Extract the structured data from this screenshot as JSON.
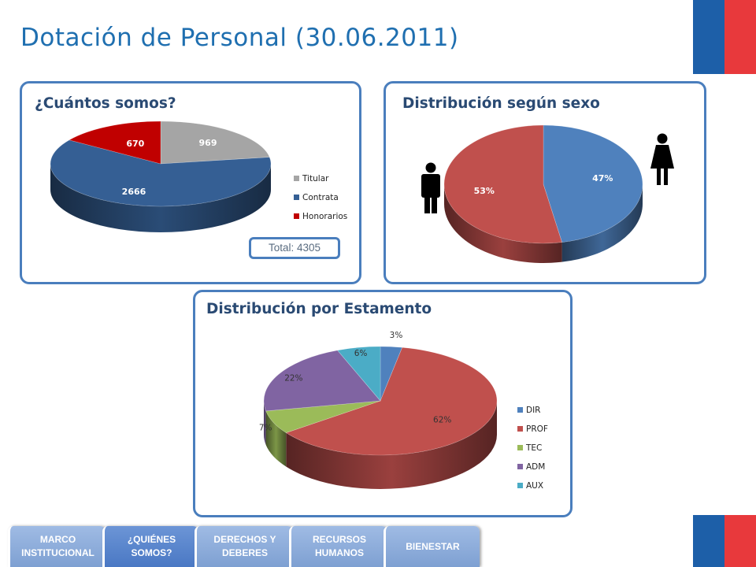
{
  "page": {
    "title": "Dotación de Personal (30.06.2011)"
  },
  "panels": {
    "cuantos": {
      "title": "¿Cuántos somos?",
      "total": "Total: 4305"
    },
    "sexo": {
      "title": "Distribución según sexo"
    },
    "estamento": {
      "title": "Distribución por Estamento"
    }
  },
  "chart_data": [
    {
      "type": "pie",
      "style": "3d",
      "title": "¿Cuántos somos?",
      "categories": [
        "Titular",
        "Contrata",
        "Honorarios"
      ],
      "values": [
        969,
        2666,
        670
      ],
      "labels": [
        "969",
        "2666",
        "670"
      ],
      "colors": [
        "#a5a5a5",
        "#355f94",
        "#c00000"
      ],
      "legend": "right",
      "annotation": "Total: 4305"
    },
    {
      "type": "pie",
      "style": "3d",
      "title": "Distribución según sexo",
      "categories": [
        "Mujeres",
        "Hombres"
      ],
      "values": [
        47,
        53
      ],
      "labels": [
        "47%",
        "53%"
      ],
      "colors": [
        "#4f81bd",
        "#c0504d"
      ],
      "icons": [
        "male-figure-icon",
        "female-figure-icon"
      ]
    },
    {
      "type": "pie",
      "style": "3d",
      "title": "Distribución por Estamento",
      "categories": [
        "DIR",
        "PROF",
        "TEC",
        "ADM",
        "AUX"
      ],
      "values": [
        3,
        62,
        7,
        22,
        6
      ],
      "labels": [
        "3%",
        "62%",
        "7%",
        "22%",
        "6%"
      ],
      "colors": [
        "#4f81bd",
        "#c0504d",
        "#9bbb59",
        "#8064a2",
        "#4bacc6"
      ],
      "legend": "right"
    }
  ],
  "nav": {
    "tabs": [
      {
        "label": "MARCO\nINSTITUCIONAL",
        "active": false
      },
      {
        "label": "¿QUIÉNES\nSOMOS?",
        "active": true
      },
      {
        "label": "DERECHOS Y\nDEBERES",
        "active": false
      },
      {
        "label": "RECURSOS\nHUMANOS",
        "active": false
      },
      {
        "label": "BIENESTAR",
        "active": false
      }
    ]
  }
}
